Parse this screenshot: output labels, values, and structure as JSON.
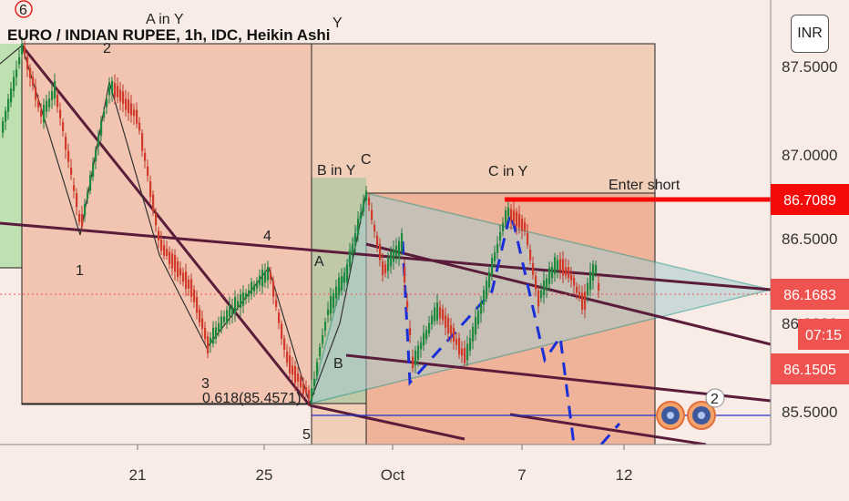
{
  "chart_data": {
    "type": "candlestick",
    "title": "EURO / INDIAN RUPEE, 1h, IDC, Heikin Ashi",
    "y_ticks": [
      "87.5000",
      "87.0000",
      "86.5000",
      "86.0000",
      "85.5000"
    ],
    "x_ticks": [
      "21",
      "25",
      "Oct",
      "7",
      "12"
    ],
    "ylim": [
      85.2,
      87.8
    ],
    "currency_button": "INR",
    "price_tags": [
      {
        "label": "86.7089",
        "value": 86.7089,
        "color": "#f50a0a"
      },
      {
        "label": "86.1683",
        "value": 86.1683,
        "color": "#ef5350"
      },
      {
        "label": "07:15",
        "value": 86.06,
        "color": "#ef5350"
      },
      {
        "label": "86.1505",
        "value": 85.97,
        "color": "#ef5350"
      }
    ],
    "annotations": {
      "wave_6": "6",
      "a_in_y": "A in Y",
      "y": "Y",
      "wave_2": "2",
      "wave_1": "1",
      "wave_3": "3",
      "wave_4": "4",
      "wave_5": "5",
      "b_in_y": "B in Y",
      "c_sup": "C",
      "c_in_y": "C in Y",
      "enter_short": "Enter short",
      "a_small": "A",
      "b_small": "B",
      "fib": "0.618(85.4571)",
      "badge_count": "2"
    }
  }
}
